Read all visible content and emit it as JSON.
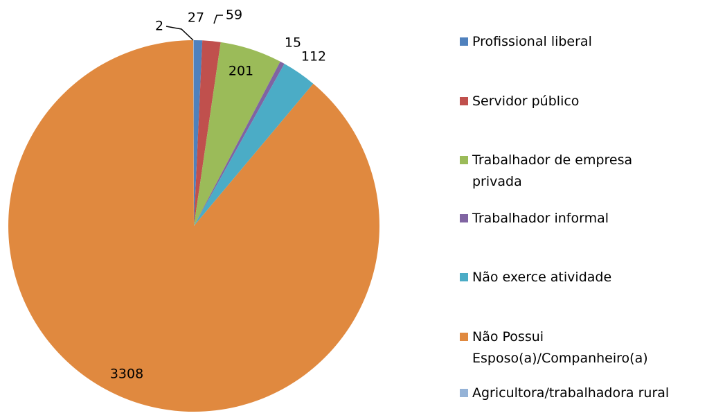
{
  "chart_data": {
    "type": "pie",
    "categories": [
      "Profissional liberal",
      "Servidor público",
      "Trabalhador de empresa privada",
      "Trabalhador informal",
      "Não exerce atividade",
      "Não Possui Esposo(a)/Companheiro(a)",
      "Agricultora/trabalhadora rural"
    ],
    "values": [
      27,
      59,
      201,
      15,
      112,
      3308,
      2
    ],
    "colors": [
      "#4f81bd",
      "#c0504d",
      "#9bbb59",
      "#8064a2",
      "#4bacc6",
      "#e0893f",
      "#95b3d7"
    ],
    "legend": "right"
  }
}
